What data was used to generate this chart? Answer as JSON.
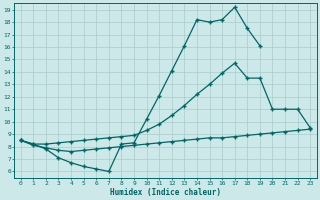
{
  "xlabel": "Humidex (Indice chaleur)",
  "bg_color": "#cce8e8",
  "grid_color": "#aacccc",
  "line_color": "#006666",
  "xlim": [
    -0.5,
    23.5
  ],
  "ylim": [
    5.5,
    19.5
  ],
  "xticks": [
    0,
    1,
    2,
    3,
    4,
    5,
    6,
    7,
    8,
    9,
    10,
    11,
    12,
    13,
    14,
    15,
    16,
    17,
    18,
    19,
    20,
    21,
    22,
    23
  ],
  "yticks": [
    6,
    7,
    8,
    9,
    10,
    11,
    12,
    13,
    14,
    15,
    16,
    17,
    18,
    19
  ],
  "line1_x": [
    0,
    1,
    2,
    3,
    4,
    5,
    6,
    7,
    8,
    9,
    10,
    11,
    12,
    13,
    14,
    15,
    16,
    17,
    18,
    19
  ],
  "line1_y": [
    8.5,
    8.2,
    7.8,
    7.1,
    6.7,
    6.4,
    6.2,
    6.0,
    8.2,
    8.3,
    10.2,
    12.1,
    14.1,
    16.1,
    18.2,
    18.0,
    18.2,
    19.2,
    17.5,
    16.1
  ],
  "line2_x": [
    0,
    1,
    2,
    3,
    4,
    5,
    6,
    7,
    8,
    9,
    10,
    11,
    12,
    13,
    14,
    15,
    16,
    17,
    18,
    19,
    20,
    21,
    22,
    23
  ],
  "line2_y": [
    8.5,
    8.2,
    8.2,
    8.3,
    8.4,
    8.5,
    8.6,
    8.7,
    8.8,
    8.9,
    9.3,
    9.8,
    10.5,
    11.3,
    12.2,
    13.0,
    13.9,
    14.7,
    13.5,
    13.5,
    11.0,
    11.0,
    11.0,
    9.5
  ],
  "line3_x": [
    0,
    1,
    2,
    3,
    4,
    5,
    6,
    7,
    8,
    9,
    10,
    11,
    12,
    13,
    14,
    15,
    16,
    17,
    18,
    19,
    20,
    21,
    22,
    23
  ],
  "line3_y": [
    8.5,
    8.1,
    7.9,
    7.7,
    7.6,
    7.7,
    7.8,
    7.9,
    8.0,
    8.1,
    8.2,
    8.3,
    8.4,
    8.5,
    8.6,
    8.7,
    8.7,
    8.8,
    8.9,
    9.0,
    9.1,
    9.2,
    9.3,
    9.4
  ]
}
